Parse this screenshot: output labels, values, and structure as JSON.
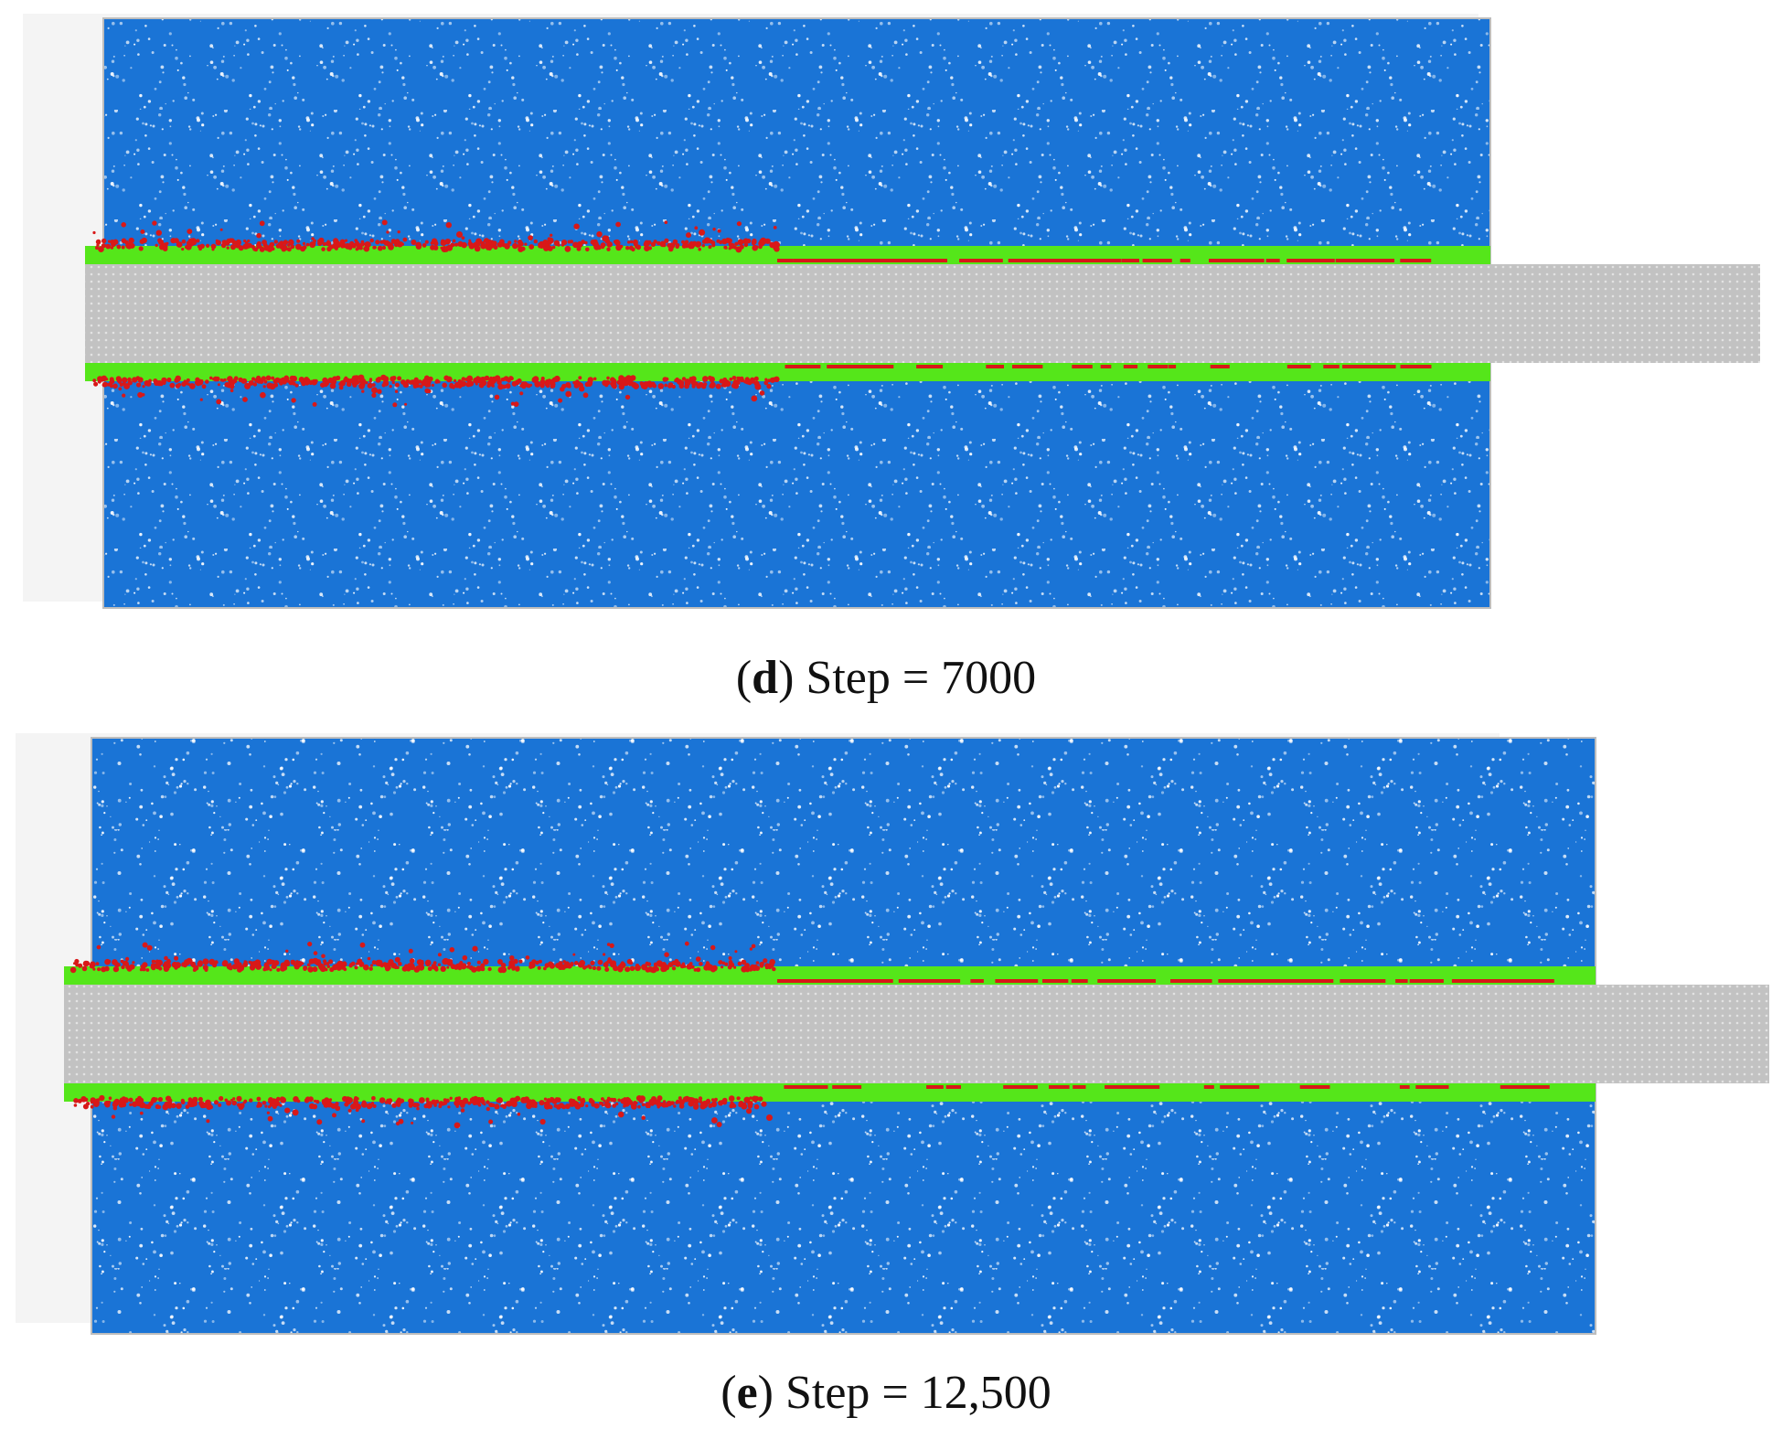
{
  "colors": {
    "frame": "#f4f4f4",
    "soil": "#1a74d6",
    "pore": "#ffffff",
    "bolt": "#c2c2c2",
    "bolt_particle": "#ffffff",
    "interface_intact": "#55e61a",
    "interface_broken": "#d81818"
  },
  "panels": [
    {
      "letter": "d",
      "open_paren": "(",
      "close_rest": ") Step = 7000"
    },
    {
      "letter": "e",
      "open_paren": "(",
      "close_rest": ") Step = 12,500"
    }
  ]
}
